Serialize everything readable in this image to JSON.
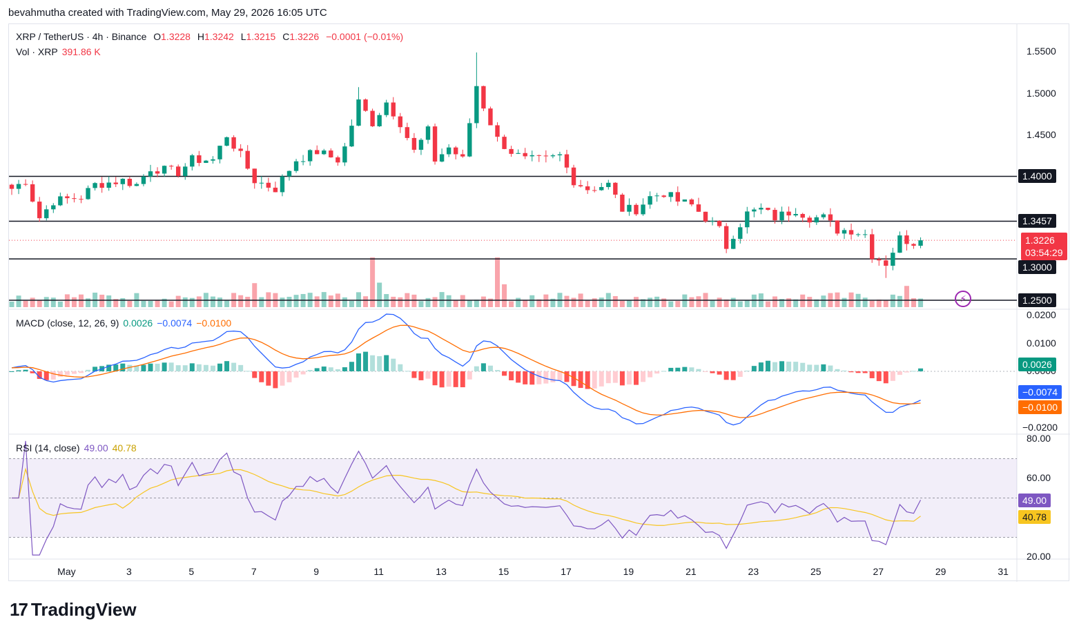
{
  "header": {
    "text": "bevahmutha created with TradingView.com, May 29, 2026 16:05 UTC"
  },
  "legend": {
    "symbol": "XRP / TetherUS · 4h · Binance",
    "o_label": "O",
    "o": "1.3228",
    "h_label": "H",
    "h": "1.3242",
    "l_label": "L",
    "l": "1.3215",
    "c_label": "C",
    "c": "1.3226",
    "change": "−0.0001 (−0.01%)",
    "vol_label": "Vol · XRP",
    "vol": "391.86 K",
    "macd_label": "MACD (close, 12, 26, 9)",
    "macd_hist": "0.0026",
    "macd_line": "−0.0074",
    "macd_signal": "−0.0100",
    "rsi_label": "RSI (14, close)",
    "rsi": "49.00",
    "rsi_ma": "40.78"
  },
  "price_axis": [
    "1.5500",
    "1.5000",
    "1.4500",
    "1.4000",
    "1.3457",
    "1.3000",
    "1.2500"
  ],
  "price_tag": {
    "price": "1.3226",
    "countdown": "03:54:29"
  },
  "macd_axis": [
    "0.0200",
    "0.0100",
    "0.0000",
    "−0.0200"
  ],
  "macd_tags": {
    "hist": "0.0026",
    "macd": "−0.0074",
    "signal": "−0.0100"
  },
  "rsi_axis": [
    "80.00",
    "60.00",
    "20.00"
  ],
  "rsi_tags": {
    "rsi": "49.00",
    "ma": "40.78"
  },
  "x_axis": [
    "May",
    "3",
    "5",
    "7",
    "9",
    "11",
    "13",
    "15",
    "17",
    "19",
    "21",
    "23",
    "25",
    "27",
    "29",
    "31"
  ],
  "footer": {
    "brand": "TradingView"
  },
  "colors": {
    "up": "#089981",
    "down": "#f23645",
    "macd": "#2962ff",
    "signal": "#ff6d00",
    "rsi": "#7e57c2",
    "rsi_ma": "#f7c520"
  },
  "chart_data": {
    "type": "candlestick",
    "price_levels": [
      1.4,
      1.3457,
      1.3,
      1.25
    ],
    "price_range": [
      1.2417,
      1.5667
    ],
    "anchors": [
      {
        "x": 0,
        "y": 1.385
      },
      {
        "x": 2,
        "y": 1.395
      },
      {
        "x": 4,
        "y": 1.35
      },
      {
        "x": 6,
        "y": 1.37
      },
      {
        "x": 10,
        "y": 1.375
      },
      {
        "x": 12,
        "y": 1.39
      },
      {
        "x": 16,
        "y": 1.395
      },
      {
        "x": 18,
        "y": 1.39
      },
      {
        "x": 20,
        "y": 1.41
      },
      {
        "x": 24,
        "y": 1.405
      },
      {
        "x": 26,
        "y": 1.42
      },
      {
        "x": 29,
        "y": 1.42
      },
      {
        "x": 31,
        "y": 1.45
      },
      {
        "x": 33,
        "y": 1.425
      },
      {
        "x": 35,
        "y": 1.395
      },
      {
        "x": 38,
        "y": 1.385
      },
      {
        "x": 41,
        "y": 1.42
      },
      {
        "x": 44,
        "y": 1.43
      },
      {
        "x": 47,
        "y": 1.42
      },
      {
        "x": 48,
        "y": 1.435
      },
      {
        "x": 50,
        "y": 1.49
      },
      {
        "x": 52,
        "y": 1.465
      },
      {
        "x": 54,
        "y": 1.49
      },
      {
        "x": 56,
        "y": 1.465
      },
      {
        "x": 58,
        "y": 1.43
      },
      {
        "x": 60,
        "y": 1.455
      },
      {
        "x": 61,
        "y": 1.42
      },
      {
        "x": 63,
        "y": 1.435
      },
      {
        "x": 65,
        "y": 1.42
      },
      {
        "x": 67,
        "y": 1.51
      },
      {
        "x": 68,
        "y": 1.485
      },
      {
        "x": 70,
        "y": 1.445
      },
      {
        "x": 72,
        "y": 1.43
      },
      {
        "x": 74,
        "y": 1.42
      },
      {
        "x": 77,
        "y": 1.42
      },
      {
        "x": 79,
        "y": 1.425
      },
      {
        "x": 81,
        "y": 1.395
      },
      {
        "x": 83,
        "y": 1.385
      },
      {
        "x": 86,
        "y": 1.39
      },
      {
        "x": 88,
        "y": 1.36
      },
      {
        "x": 90,
        "y": 1.36
      },
      {
        "x": 92,
        "y": 1.375
      },
      {
        "x": 94,
        "y": 1.38
      },
      {
        "x": 96,
        "y": 1.37
      },
      {
        "x": 98,
        "y": 1.365
      },
      {
        "x": 100,
        "y": 1.35
      },
      {
        "x": 102,
        "y": 1.335
      },
      {
        "x": 103,
        "y": 1.315
      },
      {
        "x": 104,
        "y": 1.33
      },
      {
        "x": 106,
        "y": 1.355
      },
      {
        "x": 108,
        "y": 1.36
      },
      {
        "x": 110,
        "y": 1.35
      },
      {
        "x": 113,
        "y": 1.36
      },
      {
        "x": 115,
        "y": 1.35
      },
      {
        "x": 117,
        "y": 1.35
      },
      {
        "x": 119,
        "y": 1.335
      },
      {
        "x": 121,
        "y": 1.335
      },
      {
        "x": 123,
        "y": 1.33
      },
      {
        "x": 124,
        "y": 1.305
      },
      {
        "x": 126,
        "y": 1.295
      },
      {
        "x": 128,
        "y": 1.325
      },
      {
        "x": 130,
        "y": 1.32
      },
      {
        "x": 131,
        "y": 1.3226
      }
    ],
    "volume_label": "391.86 K",
    "macd": {
      "params": "close, 12, 26, 9",
      "histogram": 0.0026,
      "macd": -0.0074,
      "signal": -0.01
    },
    "rsi": {
      "params": "14, close",
      "value": 49.0,
      "ma": 40.78,
      "bands": [
        70,
        30
      ],
      "range": [
        20,
        80
      ]
    },
    "x_labels": [
      "May",
      "3",
      "5",
      "7",
      "9",
      "11",
      "13",
      "15",
      "17",
      "19",
      "21",
      "23",
      "25",
      "27",
      "29",
      "31"
    ],
    "x_label_bar_index": {
      "May": 8,
      "3": 17,
      "5": 26,
      "7": 35,
      "9": 44,
      "11": 53,
      "13": 62,
      "15": 71,
      "17": 80,
      "19": 89,
      "21": 98,
      "23": 107,
      "25": 116,
      "27": 125,
      "29": 134,
      "31": 143
    }
  }
}
